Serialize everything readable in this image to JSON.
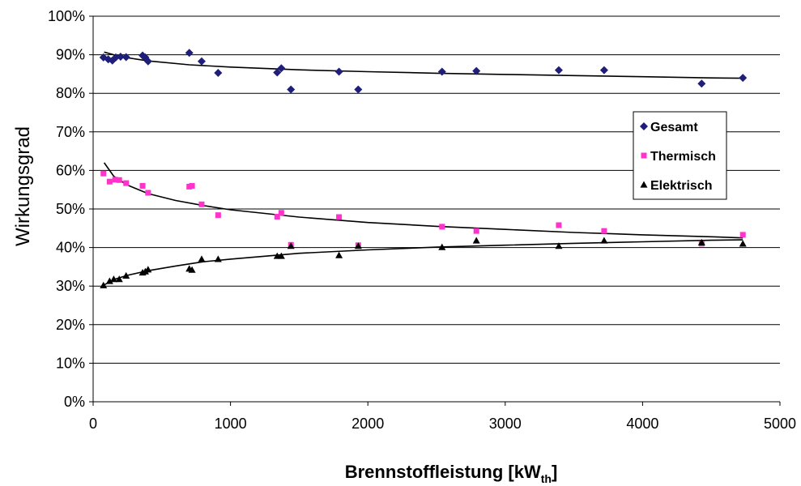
{
  "chart_data": {
    "type": "scatter",
    "ylabel": "Wirkungsgrad",
    "xlabel_main": "Brennstoffleistung [kW",
    "xlabel_sub": "th",
    "xlabel_end": "]",
    "xlim": [
      0,
      5000
    ],
    "ylim": [
      0,
      100
    ],
    "x_ticks": [
      "0",
      "1000",
      "2000",
      "3000",
      "4000",
      "5000"
    ],
    "y_ticks": [
      "0%",
      "10%",
      "20%",
      "30%",
      "40%",
      "50%",
      "60%",
      "70%",
      "80%",
      "90%",
      "100%"
    ],
    "grid": "horizontal",
    "legend_position": "right",
    "series": [
      {
        "name": "Gesamt",
        "marker": "diamond",
        "color": "#1F1F7A",
        "points": [
          [
            75,
            89.3
          ],
          [
            110,
            88.8
          ],
          [
            140,
            88.5
          ],
          [
            165,
            89.3
          ],
          [
            200,
            89.5
          ],
          [
            240,
            89.4
          ],
          [
            360,
            89.8
          ],
          [
            380,
            89.3
          ],
          [
            400,
            88.3
          ],
          [
            700,
            90.5
          ],
          [
            790,
            88.3
          ],
          [
            910,
            85.3
          ],
          [
            1340,
            85.4
          ],
          [
            1370,
            86.5
          ],
          [
            1440,
            81.0
          ],
          [
            1790,
            85.6
          ],
          [
            1930,
            81.0
          ],
          [
            2540,
            85.6
          ],
          [
            2790,
            85.8
          ],
          [
            3390,
            86.0
          ],
          [
            3720,
            86.0
          ],
          [
            4430,
            82.5
          ],
          [
            4730,
            84.0
          ]
        ],
        "trend": [
          [
            80,
            90.7
          ],
          [
            200,
            89.5
          ],
          [
            400,
            88.4
          ],
          [
            700,
            87.4
          ],
          [
            1000,
            86.8
          ],
          [
            1500,
            86.1
          ],
          [
            2000,
            85.6
          ],
          [
            2500,
            85.2
          ],
          [
            3000,
            84.9
          ],
          [
            3500,
            84.6
          ],
          [
            4000,
            84.3
          ],
          [
            4500,
            84.0
          ],
          [
            4730,
            83.9
          ]
        ]
      },
      {
        "name": "Thermisch",
        "marker": "square",
        "color": "#FF33CC",
        "points": [
          [
            75,
            59.2
          ],
          [
            120,
            57.1
          ],
          [
            160,
            57.6
          ],
          [
            190,
            57.5
          ],
          [
            240,
            56.7
          ],
          [
            360,
            56.0
          ],
          [
            400,
            54.2
          ],
          [
            700,
            55.8
          ],
          [
            720,
            56.0
          ],
          [
            790,
            51.2
          ],
          [
            910,
            48.4
          ],
          [
            1340,
            48.0
          ],
          [
            1370,
            49.0
          ],
          [
            1440,
            40.7
          ],
          [
            1790,
            47.9
          ],
          [
            1930,
            40.6
          ],
          [
            2540,
            45.4
          ],
          [
            2790,
            44.3
          ],
          [
            3390,
            45.8
          ],
          [
            3720,
            44.3
          ],
          [
            4430,
            41.0
          ],
          [
            4730,
            43.3
          ]
        ],
        "trend": [
          [
            80,
            62.0
          ],
          [
            150,
            58.5
          ],
          [
            250,
            56.2
          ],
          [
            400,
            54.0
          ],
          [
            600,
            52.2
          ],
          [
            800,
            50.9
          ],
          [
            1000,
            49.8
          ],
          [
            1500,
            47.9
          ],
          [
            2000,
            46.5
          ],
          [
            2500,
            45.5
          ],
          [
            3000,
            44.7
          ],
          [
            3500,
            43.9
          ],
          [
            4000,
            43.3
          ],
          [
            4500,
            42.8
          ],
          [
            4730,
            42.5
          ]
        ]
      },
      {
        "name": "Elektrisch",
        "marker": "triangle",
        "color": "#000000",
        "points": [
          [
            75,
            30.2
          ],
          [
            120,
            31.3
          ],
          [
            150,
            31.8
          ],
          [
            190,
            31.8
          ],
          [
            240,
            32.7
          ],
          [
            360,
            33.5
          ],
          [
            380,
            33.8
          ],
          [
            400,
            34.3
          ],
          [
            700,
            34.5
          ],
          [
            720,
            34.2
          ],
          [
            790,
            37.0
          ],
          [
            910,
            37.0
          ],
          [
            1340,
            37.8
          ],
          [
            1370,
            37.8
          ],
          [
            1440,
            40.4
          ],
          [
            1790,
            38.0
          ],
          [
            1930,
            40.4
          ],
          [
            2540,
            40.1
          ],
          [
            2790,
            41.8
          ],
          [
            3390,
            40.4
          ],
          [
            3720,
            41.8
          ],
          [
            4430,
            41.3
          ],
          [
            4730,
            41.0
          ]
        ],
        "trend": [
          [
            80,
            30.3
          ],
          [
            150,
            31.7
          ],
          [
            250,
            32.8
          ],
          [
            400,
            34.0
          ],
          [
            600,
            35.2
          ],
          [
            800,
            36.3
          ],
          [
            1000,
            37.0
          ],
          [
            1500,
            38.5
          ],
          [
            2000,
            39.4
          ],
          [
            2500,
            40.1
          ],
          [
            3000,
            40.6
          ],
          [
            3500,
            41.1
          ],
          [
            4000,
            41.5
          ],
          [
            4500,
            41.9
          ],
          [
            4730,
            42.0
          ]
        ]
      }
    ]
  }
}
